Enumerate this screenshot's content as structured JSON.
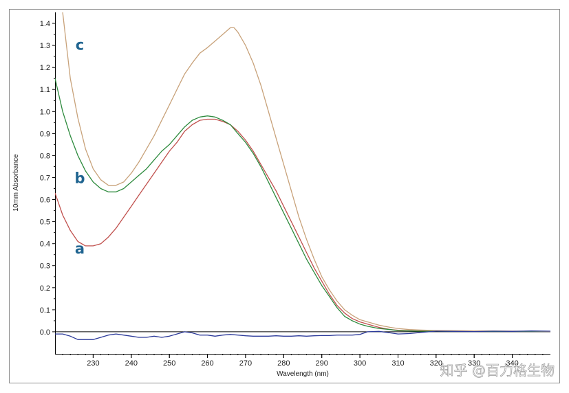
{
  "watermark": "知乎 @百力格生物",
  "chart_data": {
    "type": "line",
    "title": "",
    "xlabel": "Wavelength (nm)",
    "ylabel": "10mm Absorbance",
    "xlim": [
      220,
      350
    ],
    "ylim": [
      -0.1,
      1.45
    ],
    "xticks": [
      230,
      240,
      250,
      260,
      270,
      280,
      290,
      300,
      310,
      320,
      330,
      340
    ],
    "yticks": [
      0.0,
      0.1,
      0.2,
      0.3,
      0.4,
      0.5,
      0.6,
      0.7,
      0.8,
      0.9,
      1.0,
      1.1,
      1.2,
      1.3,
      1.4
    ],
    "ytick_labels": [
      "0.0",
      "0.1",
      "0.2",
      "0.3",
      "0.4",
      "0.5",
      "0.6",
      "0.7",
      "0.8",
      "0.9",
      "1.0",
      "1.1",
      "1.2",
      "1.3",
      "1.4"
    ],
    "grid": false,
    "reference_line": 0.0,
    "series": [
      {
        "name": "a",
        "color": "#c0504d",
        "label_at": {
          "x": 226.5,
          "y": 0.355
        },
        "x": [
          220,
          222,
          224,
          226,
          228,
          230,
          232,
          234,
          236,
          238,
          240,
          242,
          244,
          246,
          248,
          250,
          252,
          254,
          256,
          258,
          260,
          262,
          264,
          266,
          268,
          270,
          272,
          274,
          276,
          278,
          280,
          282,
          284,
          286,
          288,
          290,
          292,
          294,
          296,
          298,
          300,
          302,
          305,
          308,
          310,
          313,
          316,
          320,
          325,
          330,
          335,
          340,
          345,
          350
        ],
        "y": [
          0.63,
          0.53,
          0.46,
          0.41,
          0.39,
          0.39,
          0.4,
          0.43,
          0.47,
          0.52,
          0.57,
          0.62,
          0.67,
          0.72,
          0.77,
          0.82,
          0.86,
          0.91,
          0.94,
          0.96,
          0.965,
          0.965,
          0.955,
          0.94,
          0.91,
          0.87,
          0.82,
          0.76,
          0.7,
          0.64,
          0.57,
          0.5,
          0.43,
          0.36,
          0.29,
          0.23,
          0.17,
          0.12,
          0.085,
          0.06,
          0.045,
          0.035,
          0.02,
          0.01,
          0.007,
          0.005,
          0.004,
          0.004,
          0.004,
          0.003,
          0.003,
          0.003,
          0.002,
          0.002
        ]
      },
      {
        "name": "b",
        "color": "#2e8b3e",
        "label_at": {
          "x": 226.5,
          "y": 0.675
        },
        "x": [
          220,
          222,
          224,
          226,
          228,
          230,
          232,
          234,
          236,
          238,
          240,
          242,
          244,
          246,
          248,
          250,
          252,
          254,
          256,
          258,
          260,
          262,
          264,
          266,
          268,
          270,
          272,
          274,
          276,
          278,
          280,
          282,
          284,
          286,
          288,
          290,
          292,
          294,
          296,
          298,
          300,
          302,
          305,
          308,
          310,
          313,
          316,
          320,
          325,
          330,
          335,
          340,
          345,
          350
        ],
        "y": [
          1.15,
          1.0,
          0.89,
          0.8,
          0.73,
          0.68,
          0.65,
          0.635,
          0.635,
          0.65,
          0.68,
          0.71,
          0.74,
          0.78,
          0.82,
          0.85,
          0.89,
          0.93,
          0.96,
          0.975,
          0.98,
          0.975,
          0.96,
          0.94,
          0.9,
          0.86,
          0.81,
          0.75,
          0.68,
          0.61,
          0.54,
          0.47,
          0.4,
          0.33,
          0.27,
          0.21,
          0.16,
          0.11,
          0.07,
          0.05,
          0.035,
          0.025,
          0.015,
          0.01,
          0.005,
          0.004,
          0.003,
          0.003,
          0.002,
          0.002,
          0.002,
          0.002,
          0.002,
          0.002
        ]
      },
      {
        "name": "c",
        "color": "#c8a27a",
        "label_at": {
          "x": 226.5,
          "y": 1.28
        },
        "x": [
          222,
          223,
          224,
          226,
          228,
          230,
          232,
          234,
          236,
          238,
          240,
          242,
          244,
          246,
          248,
          250,
          252,
          254,
          256,
          258,
          260,
          262,
          264,
          266,
          267,
          268,
          270,
          272,
          274,
          276,
          278,
          280,
          282,
          284,
          286,
          288,
          290,
          292,
          294,
          296,
          298,
          300,
          302,
          305,
          308,
          310,
          313,
          316,
          320,
          325,
          330,
          335,
          340,
          345,
          350
        ],
        "y": [
          1.45,
          1.3,
          1.15,
          0.97,
          0.83,
          0.74,
          0.69,
          0.665,
          0.665,
          0.68,
          0.72,
          0.77,
          0.83,
          0.89,
          0.96,
          1.03,
          1.1,
          1.17,
          1.22,
          1.265,
          1.29,
          1.32,
          1.35,
          1.38,
          1.38,
          1.36,
          1.3,
          1.22,
          1.12,
          1.0,
          0.88,
          0.76,
          0.64,
          0.52,
          0.42,
          0.33,
          0.25,
          0.19,
          0.14,
          0.1,
          0.075,
          0.055,
          0.045,
          0.03,
          0.02,
          0.015,
          0.01,
          0.008,
          0.006,
          0.005,
          0.004,
          0.004,
          0.003,
          0.003,
          0.002
        ]
      },
      {
        "name": "",
        "color": "#2c3a9a",
        "x": [
          220,
          222,
          224,
          226,
          228,
          230,
          232,
          234,
          236,
          238,
          240,
          242,
          244,
          246,
          248,
          250,
          252,
          254,
          256,
          258,
          260,
          262,
          264,
          266,
          268,
          270,
          272,
          274,
          276,
          278,
          280,
          282,
          284,
          286,
          288,
          290,
          292,
          294,
          296,
          298,
          300,
          302,
          305,
          308,
          310,
          313,
          316,
          320,
          325,
          330,
          335,
          340,
          345,
          350
        ],
        "y": [
          -0.01,
          -0.01,
          -0.02,
          -0.035,
          -0.035,
          -0.035,
          -0.025,
          -0.015,
          -0.01,
          -0.015,
          -0.02,
          -0.025,
          -0.025,
          -0.02,
          -0.025,
          -0.02,
          -0.01,
          0.0,
          -0.005,
          -0.015,
          -0.015,
          -0.02,
          -0.015,
          -0.012,
          -0.015,
          -0.018,
          -0.02,
          -0.02,
          -0.02,
          -0.018,
          -0.02,
          -0.02,
          -0.018,
          -0.02,
          -0.018,
          -0.017,
          -0.017,
          -0.015,
          -0.015,
          -0.015,
          -0.012,
          0.0,
          0.002,
          -0.005,
          -0.01,
          -0.008,
          -0.003,
          0.003,
          0.002,
          0.001,
          0.003,
          0.002,
          0.004,
          0.003
        ]
      }
    ]
  }
}
